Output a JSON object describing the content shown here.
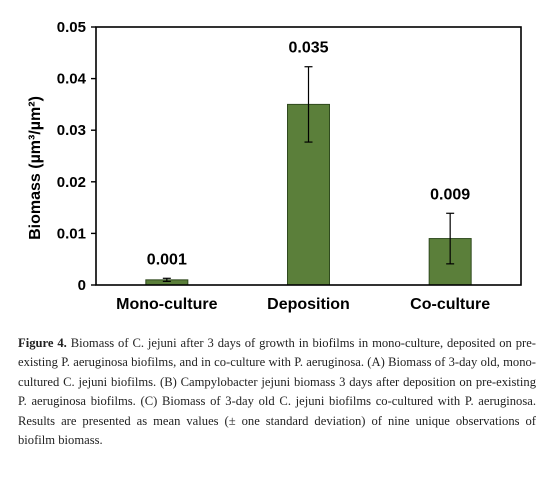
{
  "chart_data": {
    "type": "bar",
    "categories": [
      "Mono-culture",
      "Deposition",
      "Co-culture"
    ],
    "values": [
      0.001,
      0.035,
      0.009
    ],
    "value_labels": [
      "0.001",
      "0.035",
      "0.009"
    ],
    "error": [
      0.0003,
      0.0073,
      0.0049
    ],
    "ylabel": "Biomass (µm³/µm²)",
    "ylim": [
      0,
      0.05
    ],
    "yticks": [
      "0",
      "0.01",
      "0.02",
      "0.03",
      "0.04",
      "0.05"
    ],
    "bar_color": "#5b7f3a",
    "grid": false,
    "legend": "none"
  },
  "caption": {
    "label": "Figure 4.",
    "text": " Biomass of C. jejuni after 3 days of growth in biofilms in mono-culture, deposited on pre-existing P. aeruginosa biofilms, and in co-culture with P. aeruginosa. (A) Biomass of 3-day old, mono-cultured C. jejuni biofilms. (B) Campylobacter jejuni biomass 3 days after deposition on pre-existing P. aeruginosa biofilms. (C) Biomass of 3-day old C. jejuni biofilms co-cultured with P. aeruginosa. Results are presented as mean values (± one standard deviation) of nine unique observations of biofilm biomass."
  }
}
